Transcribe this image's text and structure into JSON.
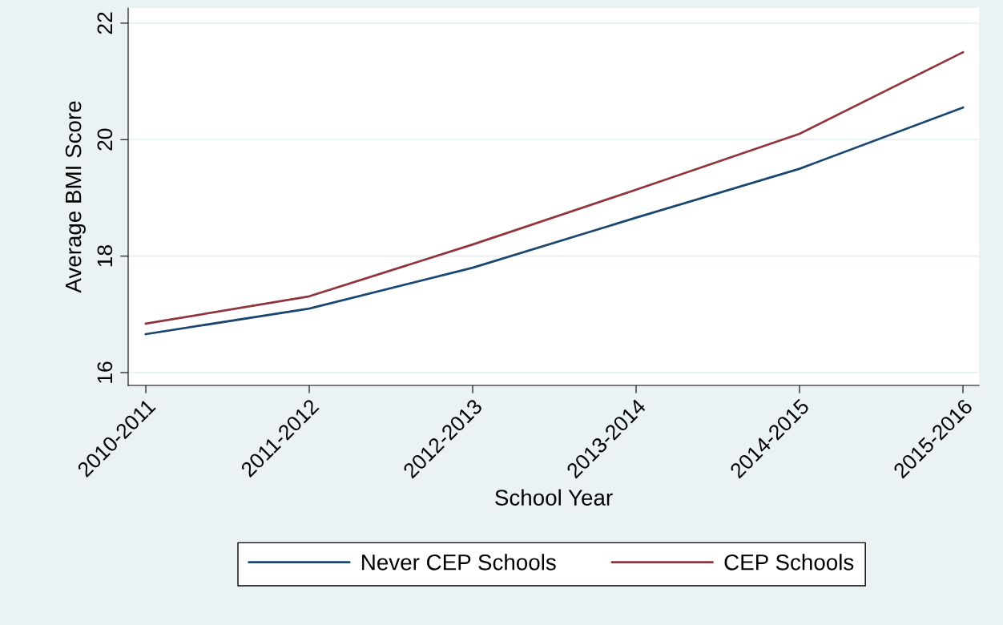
{
  "chart_data": {
    "type": "line",
    "xlabel": "School Year",
    "ylabel": "Average BMI Score",
    "categories": [
      "2010-2011",
      "2011-2012",
      "2012-2013",
      "2013-2014",
      "2014-2015",
      "2015-2016"
    ],
    "series": [
      {
        "name": "Never CEP Schools",
        "color": "#1a476f",
        "values": [
          16.66,
          17.1,
          17.8,
          18.66,
          19.5,
          20.55
        ]
      },
      {
        "name": "CEP Schools",
        "color": "#90353b",
        "values": [
          16.84,
          17.31,
          18.2,
          19.14,
          20.1,
          21.5
        ]
      }
    ],
    "ylim": [
      15.78,
      22.26
    ],
    "yticks": [
      16,
      18,
      20,
      22
    ],
    "grid": "y",
    "legend": "bottom",
    "marker": "none",
    "line_style": "solid"
  }
}
